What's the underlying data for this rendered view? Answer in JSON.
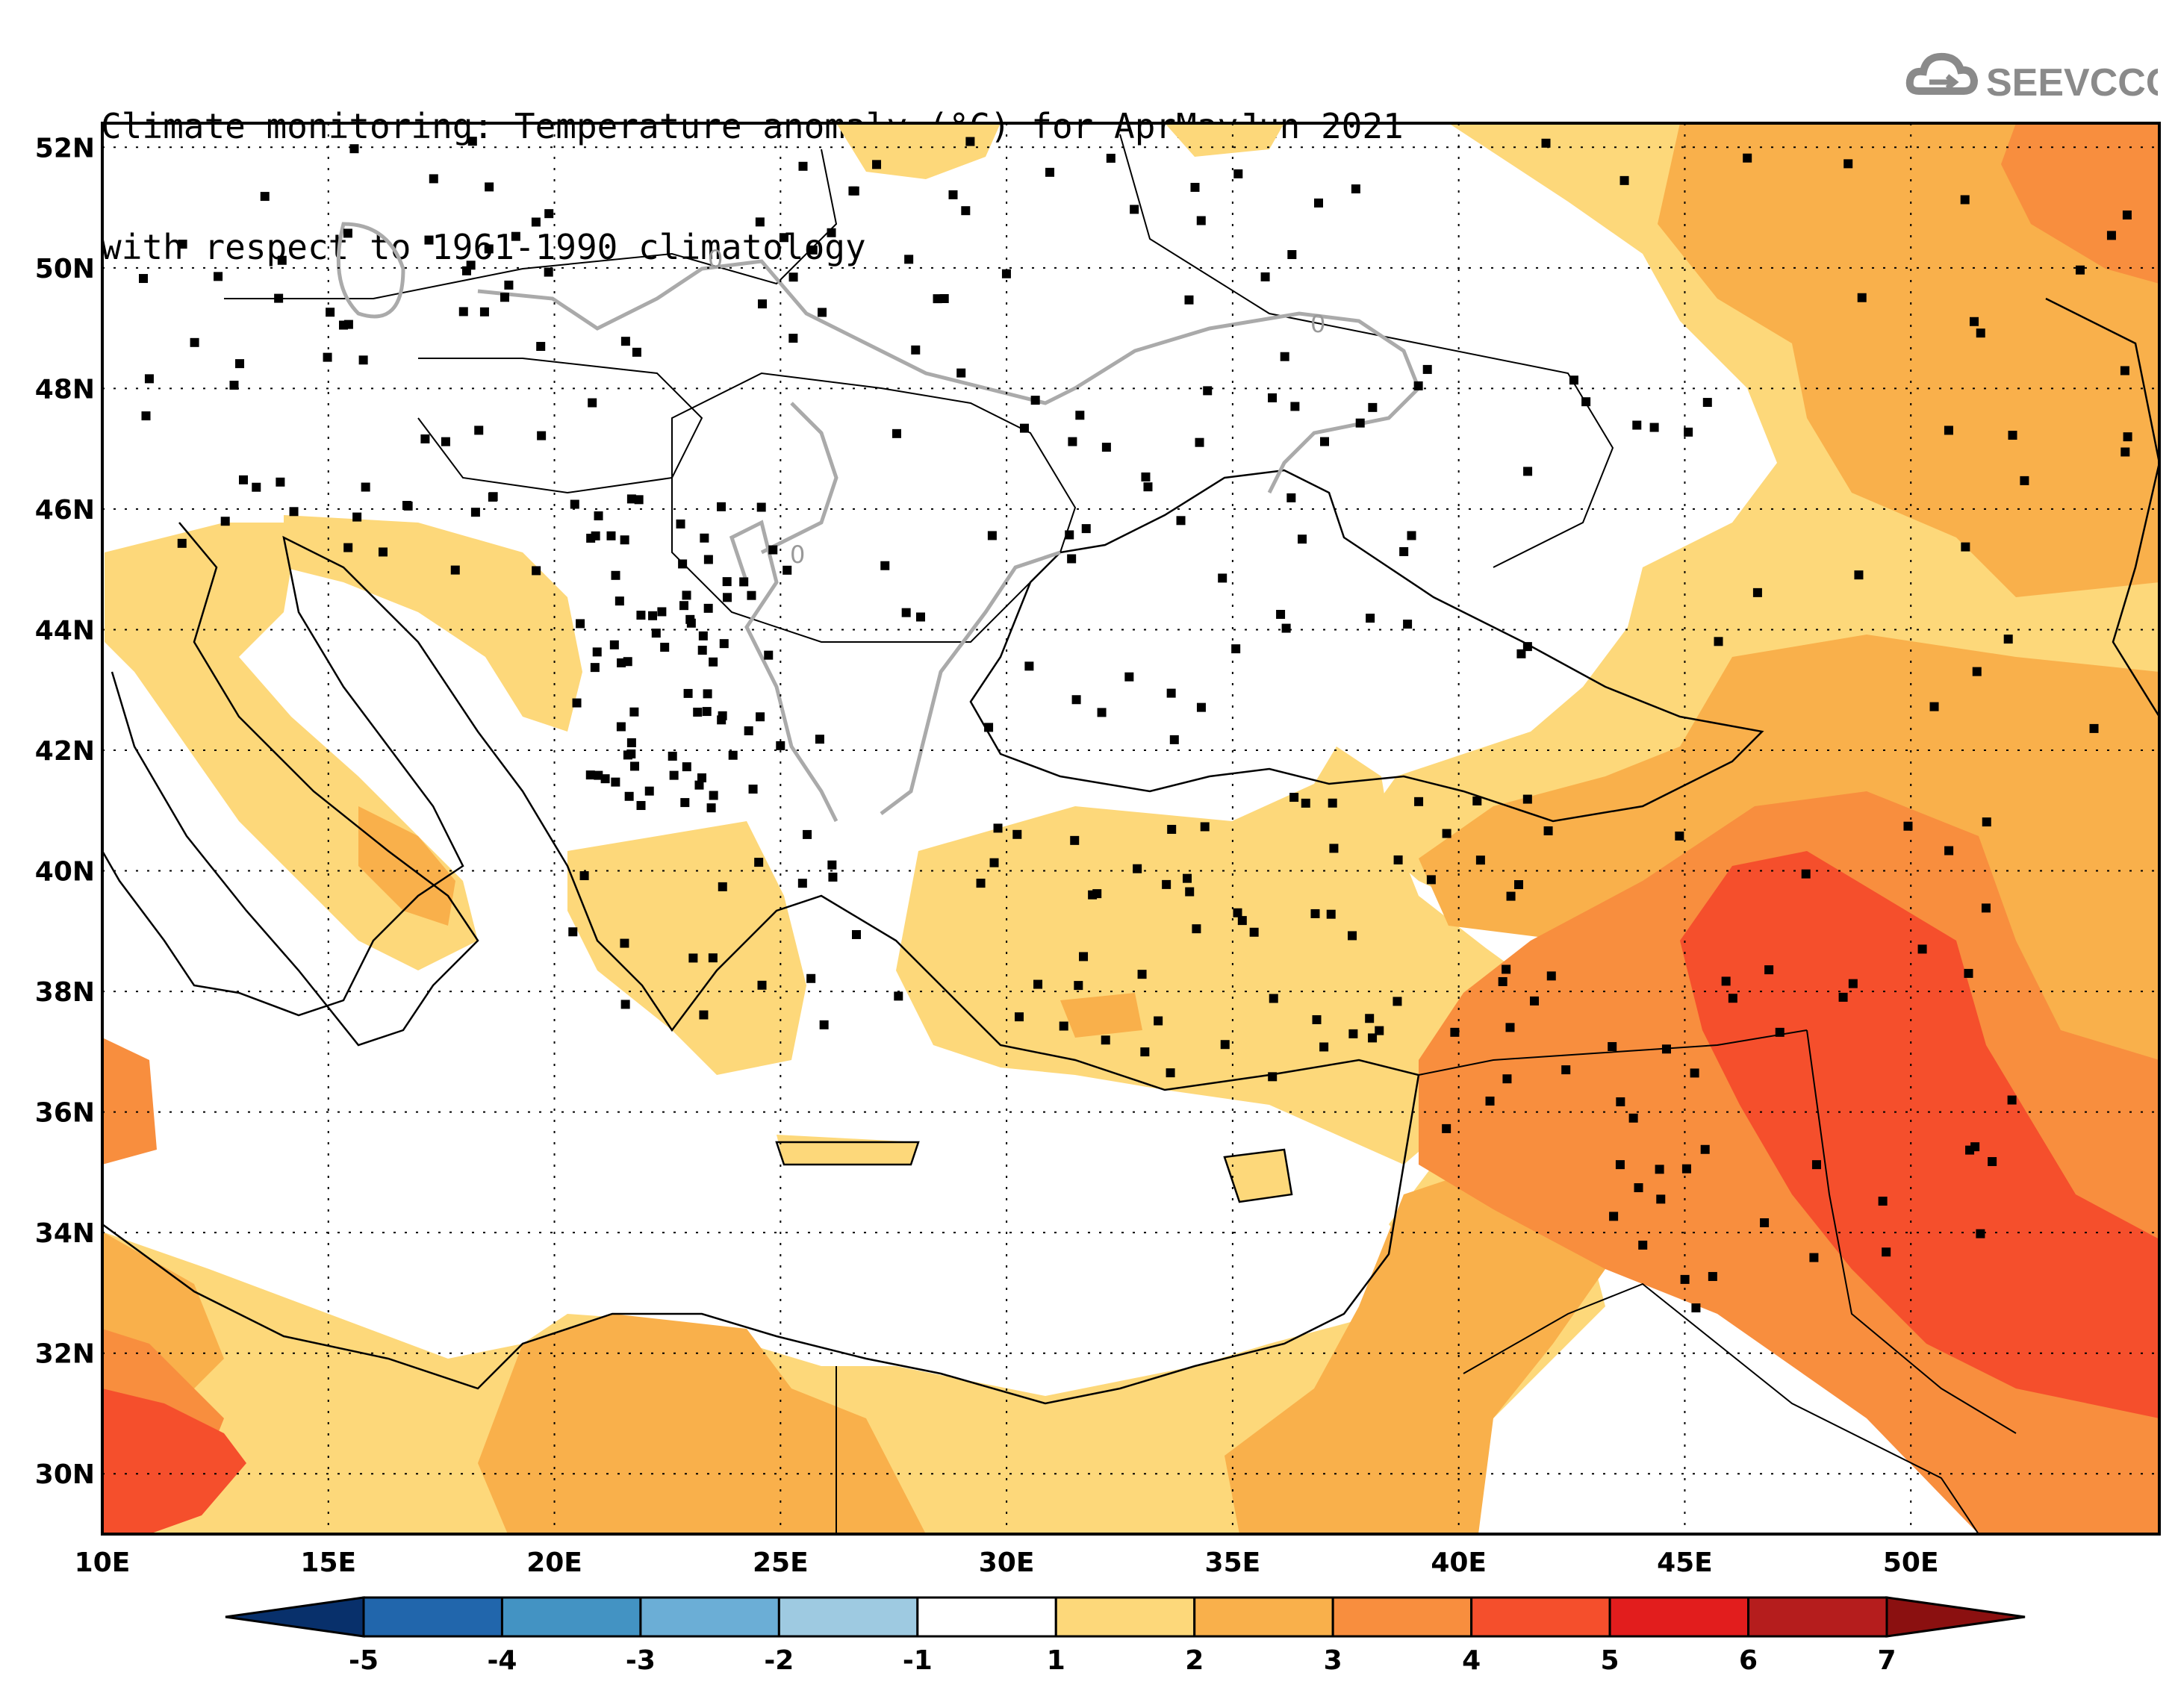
{
  "title": {
    "line1": "Climate monitoring: Temperature anomaly (°C) for AprMayJun 2021",
    "line2": "with respect to 1961-1990 climatology"
  },
  "logo": {
    "text": "SEEVCCC",
    "icon": "cloud-icon"
  },
  "map": {
    "lon_ticks": [
      "10E",
      "15E",
      "20E",
      "25E",
      "30E",
      "35E",
      "40E",
      "45E",
      "50E"
    ],
    "lat_ticks": [
      "52N",
      "50N",
      "48N",
      "46N",
      "44N",
      "42N",
      "40N",
      "38N",
      "36N",
      "34N",
      "32N",
      "30N"
    ],
    "contour_label": "0"
  },
  "colorbar": {
    "labels": [
      "-5",
      "-4",
      "-3",
      "-2",
      "-1",
      "1",
      "2",
      "3",
      "4",
      "5",
      "6",
      "7"
    ],
    "colors": [
      "#08306b",
      "#2166ac",
      "#4393c3",
      "#6baed6",
      "#9ecae1",
      "#ffffff",
      "#fdd87a",
      "#f9b04b",
      "#f88e3e",
      "#f54f2c",
      "#e21d1d",
      "#b51d1d",
      "#8b1010"
    ]
  },
  "colors": {
    "c1": "#fdd87a",
    "c2": "#f9b04b",
    "c3": "#f88e3e",
    "c4": "#f54f2c",
    "border": "#000000",
    "contour": "#aaaaaa"
  }
}
